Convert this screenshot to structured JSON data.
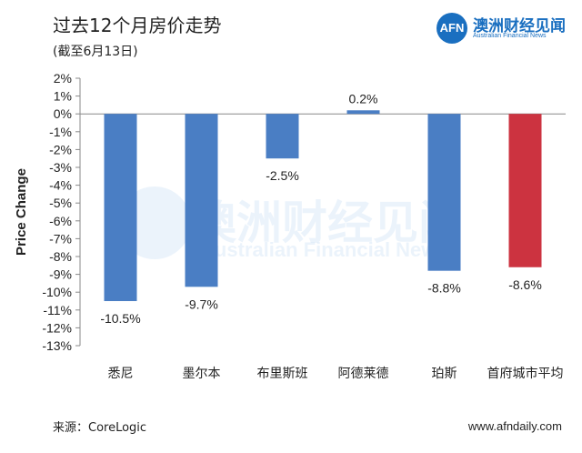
{
  "header": {
    "title": "过去12个月房价走势",
    "subtitle": "(截至6月13日)"
  },
  "logo": {
    "mark": "AFN",
    "name_cn": "澳洲财经见闻",
    "name_en": "Australian Financial News",
    "color": "#1a6fc0"
  },
  "watermark": {
    "name_cn": "澳洲财经见闻",
    "name_en": "Australian Financial News"
  },
  "footer": {
    "source": "来源：CoreLogic",
    "website": "www.afndaily.com"
  },
  "chart_data": {
    "type": "bar",
    "ylabel": "Price Change",
    "ylim": [
      -13,
      2
    ],
    "ytick_step": 1,
    "yticks": [
      "2%",
      "1%",
      "0%",
      "-1%",
      "-2%",
      "-3%",
      "-4%",
      "-5%",
      "-6%",
      "-7%",
      "-8%",
      "-9%",
      "-10%",
      "-11%",
      "-12%",
      "-13%"
    ],
    "categories": [
      "悉尼",
      "墨尔本",
      "布里斯班",
      "阿德莱德",
      "珀斯",
      "首府城市平均"
    ],
    "values": [
      -10.5,
      -9.7,
      -2.5,
      0.2,
      -8.8,
      -8.6
    ],
    "value_labels": [
      "-10.5%",
      "-9.7%",
      "-2.5%",
      "0.2%",
      "-8.8%",
      "-8.6%"
    ],
    "colors": [
      "#4a7ec4",
      "#4a7ec4",
      "#4a7ec4",
      "#4a7ec4",
      "#4a7ec4",
      "#cc3340"
    ],
    "grid": false,
    "legend": "none"
  }
}
